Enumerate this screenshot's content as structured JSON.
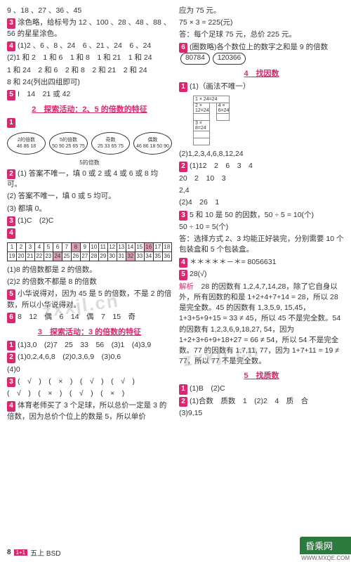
{
  "left": {
    "l1": "9 、18 、27 、36 、45",
    "l2": "涂色略，给标号为 12 、100 、28 、48 、88 、56 的星星涂色。",
    "l3a": "(1)2 、6 、8 、24　6 、21 、24　6 、24",
    "l3b": "(2)1 和 2　1 和 6　1 和 8　1 和 21　1 和 24",
    "l3c": "1 和 24　2 和 6　2 和 8　2 和 21　2 和 24",
    "l3d": "8 和 24(列出四组即可)",
    "l4": "I　14　21 或 42",
    "sec2": "2　探索活动：2、5 的倍数的特征",
    "ov1_lab": "2的倍数",
    "ov1_txt": "46 86 18",
    "ov2_lab": "5的倍数",
    "ov2_txt": "50 90 25 65 75",
    "ov3_lab": "奇数",
    "ov3_txt": "25 33 65 75",
    "ov4_lab": "偶数",
    "ov4_txt": "46 86 18 50 90",
    "ov5_lab": "5的倍数",
    "l5": "(1) 答案不唯一，填 0 或 2 或 4 或 6 或 8 均可。",
    "l6": "(2) 答案不唯一，填 0 或 5 均可。",
    "l7": "(3) 都填 0。",
    "l8": "(1)C　(2)C",
    "tbl_note1": "(1)8 的倍数都是 2 的倍数。",
    "tbl_note2": "(2)2 的倍数不都是 8 的倍数",
    "l9": "小华说得对，因为 45 是 5 的倍数，不是 2 的倍数，所以小华说得对。",
    "l10": "8　12　偶　6　14　偶　7　15　奇",
    "sec3": "3　探索活动：3 的倍数的特征",
    "l11": "(1)3,0　(2)7　25　33　56　(3)1　(4)3,9",
    "l12": "(1)0,2,4,6,8　(2)0,3,6,9　(3)0,6",
    "l13": "(4)0",
    "l14": "(　√　)　(　×　)　(　√　)　(　√　)",
    "l15": "(　√　)　(　×　)　(　√　)　(　×　)",
    "l16": "体育老师买了 3 个足球，所以总价一定是 3 的倍数，因为总价个位上的数是 5，所以单价",
    "numtable": {
      "rows": [
        [
          "1",
          "2",
          "3",
          "4",
          "5",
          "6",
          "7",
          "8",
          "9",
          "10",
          "11",
          "12",
          "13",
          "14",
          "15",
          "16",
          "17",
          "18"
        ],
        [
          "19",
          "20",
          "21",
          "22",
          "23",
          "24",
          "25",
          "26",
          "27",
          "28",
          "29",
          "30",
          "31",
          "32",
          "33",
          "34",
          "35",
          "36"
        ]
      ],
      "hl": [
        7,
        15,
        23,
        31
      ]
    }
  },
  "right": {
    "l1": "应为 75 元。",
    "l2": "75 × 3 = 225(元)",
    "l3": "答：每个足球 75 元，总价 225 元。",
    "l4": "(圈数略)各个数位上的数字之和是 9 的倍数",
    "pill1": "80784",
    "pill2": "120366",
    "sec4": "4　找因数",
    "l5": "(1)（画法不唯一）",
    "g_a": "1 × 24=24",
    "g_b": "2 × 12=24",
    "g_c": "4 × 6=24",
    "g_d": "3 × 8=24",
    "l6": "(2)1,2,3,4,6,8,12,24",
    "l7": "(1)12　2　6　3　4",
    "l8": "20　2　10　3",
    "l9": "2,4",
    "l10": "(2)4　26　1",
    "l11": "5 和 10 是 50 的因数，50 ÷ 5 = 10(个)",
    "l12": "50 ÷ 10 = 5(个)",
    "l13": "答：选择方式 2、3 均能正好装完，分别需要 10 个包装盒和 5 个包装盒。",
    "l14": "＊＊＊＊＊－＊= 8056631",
    "l15": "28(√)",
    "l16lab": "解析",
    "l16": "28 的因数有 1,2,4,7,14,28，除了它自身以外，所有因数的和是 1+2+4+7+14 = 28，所以 28 是完全数。45 的因数有 1,3,5,9, 15,45，1+3+5+9+15 = 33 ≠ 45，所以 45 不是完全数。54 的因数有 1,2,3,6,9,18,27, 54，因为 1+2+3+6+9+18+27 = 66 ≠ 54，所以 54 不是完全数。77 的因数有 1,7,11, 77，因为 1+7+11 = 19 ≠ 77，所以 77 不是完全数。",
    "sec5": "5　找质数",
    "l17": "(1)B　(2)C",
    "l18": "(1)合数　质数　1　(2)2　4　质　合",
    "l19": "(3)9,15"
  },
  "footer": {
    "page": "8",
    "tag": "1+1",
    "txt": "五上 BSD"
  },
  "corner": {
    "badge": "昏乘网",
    "sub": "WWW.MXQE.COM"
  },
  "wm": "zxxjl.cn"
}
